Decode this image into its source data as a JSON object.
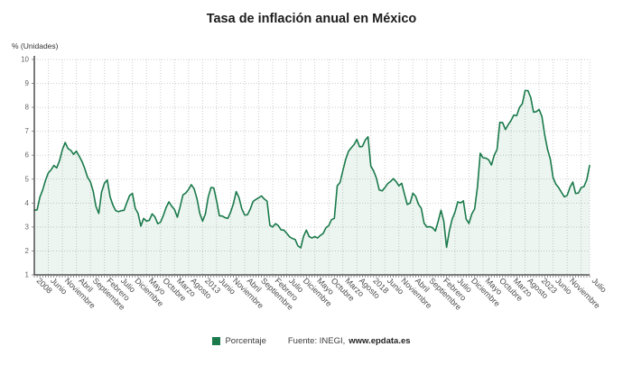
{
  "chart_data": {
    "type": "area",
    "title": "Tasa de inflación anual en México",
    "ylabel": "% (Unidades)",
    "xlabel": "",
    "ylim": [
      1,
      10
    ],
    "ytick_step": 1,
    "grid": "dotted",
    "legend_position": "bottom",
    "x_tick_indices": [
      0,
      5,
      10,
      15,
      20,
      25,
      30,
      35,
      40,
      45,
      50,
      55,
      60,
      65,
      70,
      75,
      80,
      85,
      90,
      95,
      100,
      105,
      110,
      115,
      120,
      125,
      130,
      135,
      140,
      145,
      150,
      155,
      160,
      165,
      170,
      175,
      180,
      185,
      190,
      198
    ],
    "x_tick_labels": [
      "2008",
      "Junio",
      "Noviembre",
      "Abril",
      "Septiembre",
      "Febrero",
      "Julio",
      "Diciembre",
      "Mayo",
      "Octubre",
      "Marzo",
      "Agosto",
      "2013",
      "Junio",
      "Noviembre",
      "Abril",
      "Septiembre",
      "Febrero",
      "Julio",
      "Diciembre",
      "Mayo",
      "Octubre",
      "Marzo",
      "Agosto",
      "2018",
      "Junio",
      "Noviembre",
      "Abril",
      "Septiembre",
      "Febrero",
      "Julio",
      "Diciembre",
      "Mayo",
      "Octubre",
      "Marzo",
      "Agosto",
      "2023",
      "Junio",
      "Noviembre",
      "Julio"
    ],
    "series": [
      {
        "name": "Porcentaje",
        "color": "#1a7a4b",
        "fill_color": "rgba(26,122,75,0.08)",
        "values": [
          3.7,
          3.72,
          4.25,
          4.55,
          4.95,
          5.26,
          5.39,
          5.57,
          5.47,
          5.78,
          6.23,
          6.53,
          6.28,
          6.2,
          6.04,
          6.17,
          5.96,
          5.74,
          5.44,
          5.08,
          4.89,
          4.5,
          3.86,
          3.57,
          4.46,
          4.83,
          4.97,
          4.27,
          3.92,
          3.69,
          3.64,
          3.68,
          3.7,
          4.02,
          4.32,
          4.4,
          3.78,
          3.57,
          3.04,
          3.36,
          3.25,
          3.28,
          3.55,
          3.42,
          3.14,
          3.2,
          3.48,
          3.82,
          4.05,
          3.87,
          3.73,
          3.41,
          3.85,
          4.34,
          4.42,
          4.57,
          4.77,
          4.6,
          4.18,
          3.57,
          3.25,
          3.55,
          4.25,
          4.65,
          4.63,
          4.09,
          3.47,
          3.46,
          3.39,
          3.36,
          3.62,
          3.97,
          4.48,
          4.23,
          3.76,
          3.5,
          3.51,
          3.75,
          4.07,
          4.15,
          4.22,
          4.3,
          4.17,
          4.08,
          3.07,
          3.0,
          3.14,
          3.06,
          2.88,
          2.87,
          2.74,
          2.59,
          2.52,
          2.48,
          2.21,
          2.13,
          2.61,
          2.87,
          2.6,
          2.54,
          2.6,
          2.54,
          2.65,
          2.73,
          2.97,
          3.06,
          3.31,
          3.36,
          4.72,
          4.86,
          5.35,
          5.82,
          6.16,
          6.31,
          6.44,
          6.66,
          6.35,
          6.37,
          6.63,
          6.77,
          5.55,
          5.34,
          5.04,
          4.55,
          4.51,
          4.65,
          4.81,
          4.9,
          5.02,
          4.9,
          4.72,
          4.83,
          4.37,
          3.94,
          4.0,
          4.41,
          4.28,
          3.95,
          3.78,
          3.16,
          3.0,
          3.02,
          2.97,
          2.83,
          3.24,
          3.7,
          3.25,
          2.15,
          2.84,
          3.33,
          3.62,
          4.05,
          4.01,
          4.09,
          3.33,
          3.15,
          3.54,
          3.76,
          4.67,
          6.08,
          5.89,
          5.88,
          5.81,
          5.59,
          6.0,
          6.24,
          7.37,
          7.36,
          7.07,
          7.28,
          7.45,
          7.68,
          7.65,
          7.99,
          8.15,
          8.7,
          8.7,
          8.41,
          7.8,
          7.82,
          7.91,
          7.62,
          6.85,
          6.25,
          5.84,
          5.06,
          4.79,
          4.64,
          4.45,
          4.26,
          4.32,
          4.66,
          4.88,
          4.4,
          4.42,
          4.65,
          4.69,
          4.98,
          5.57
        ]
      }
    ]
  },
  "footer": {
    "legend_label": "Porcentaje",
    "source_prefix": "Fuente: INEGI,",
    "source_site": "www.epdata.es"
  },
  "colors": {
    "line": "#1a7a4b",
    "fill": "rgba(26,122,75,0.08)",
    "grid": "#cccccc",
    "axis": "#333333",
    "title_text": "#1c1c1c",
    "tick_text": "#666666"
  }
}
